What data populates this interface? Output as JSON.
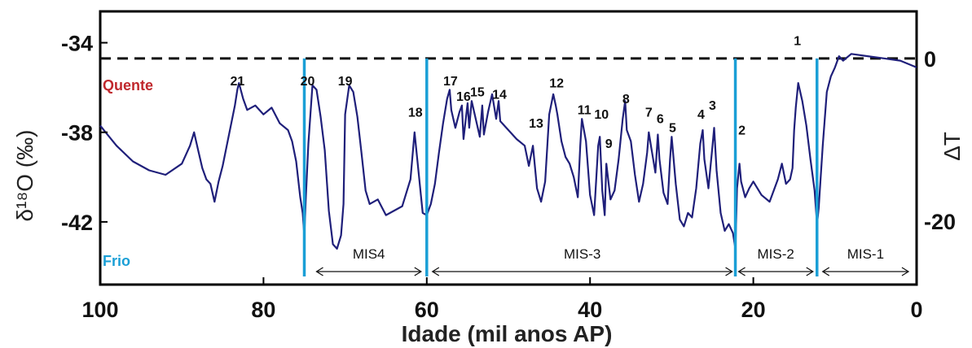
{
  "chart_data": {
    "type": "line",
    "xlabel": "Idade (mil anos AP)",
    "ylabel_left": "δ¹⁸O (‰)",
    "ylabel_right": "ΔT",
    "x_ticks": [
      "100",
      "80",
      "60",
      "40",
      "20",
      "0"
    ],
    "y_ticks_left": [
      "-34",
      "-38",
      "-42"
    ],
    "y_ticks_right": [
      "0",
      "-20"
    ],
    "xlim": [
      100,
      0
    ],
    "ylim": [
      -44.8,
      -32.6
    ],
    "series": [
      {
        "color": "#1f1f7a",
        "x": [
          100,
          98,
          96,
          94,
          92,
          90,
          89,
          88.5,
          88,
          87.5,
          87,
          86.5,
          86,
          85.5,
          85,
          84.5,
          84,
          83.5,
          83.2,
          83,
          82.5,
          82,
          81,
          80,
          79,
          78,
          77,
          76.5,
          76,
          75.5,
          75.2,
          75,
          74.8,
          74.5,
          74,
          73.5,
          73,
          72.5,
          72,
          71.5,
          71,
          70.5,
          70.2,
          70,
          69.5,
          69,
          68.5,
          68,
          67.5,
          67,
          66,
          65,
          64,
          63,
          62,
          61.5,
          61,
          60.5,
          60,
          59.5,
          59,
          58.5,
          58,
          57.5,
          57.2,
          57,
          56.5,
          56,
          55.7,
          55.5,
          55,
          54.8,
          54.5,
          54,
          53.5,
          53.2,
          53,
          52.5,
          52,
          51.5,
          51.2,
          51,
          50,
          49,
          48,
          47.5,
          47,
          46.5,
          46,
          45.5,
          45,
          44.5,
          44.2,
          44,
          43.5,
          43,
          42.5,
          42,
          41.5,
          41.2,
          41,
          40.5,
          40,
          39.5,
          39,
          38.8,
          38.5,
          38.2,
          38,
          37.5,
          37,
          36.5,
          36,
          35.7,
          35.5,
          35,
          34.5,
          34,
          33.5,
          33,
          32.8,
          32.5,
          32,
          31.7,
          31.5,
          31,
          30.5,
          30.2,
          30,
          29.5,
          29,
          28.5,
          28,
          27.5,
          27,
          26.5,
          26.2,
          26,
          25.5,
          25,
          24.8,
          24.5,
          24,
          23.5,
          23,
          22.5,
          22.2,
          22,
          21.7,
          21.5,
          21,
          20.5,
          20,
          19,
          18,
          17,
          16.5,
          16,
          15.5,
          15.2,
          15,
          14.8,
          14.5,
          14,
          13.5,
          13,
          12.5,
          12.2,
          12,
          11.5,
          11,
          10.5,
          10,
          9.5,
          9,
          8,
          6,
          4,
          2,
          0
        ],
        "values": [
          -37.7,
          -38.6,
          -39.3,
          -39.7,
          -39.9,
          -39.4,
          -38.6,
          -38.0,
          -38.8,
          -39.6,
          -40.1,
          -40.3,
          -41.1,
          -40.2,
          -39.5,
          -38.6,
          -37.7,
          -36.8,
          -36.1,
          -35.8,
          -36.5,
          -37.0,
          -36.8,
          -37.2,
          -36.9,
          -37.6,
          -37.9,
          -38.4,
          -39.3,
          -40.9,
          -41.6,
          -42.6,
          -40.8,
          -38.5,
          -35.9,
          -36.1,
          -37.3,
          -38.8,
          -41.5,
          -43.0,
          -43.2,
          -42.6,
          -41.2,
          -37.2,
          -35.9,
          -36.2,
          -37.3,
          -38.9,
          -40.6,
          -41.2,
          -41.0,
          -41.7,
          -41.5,
          -41.3,
          -40.1,
          -38.0,
          -39.8,
          -41.6,
          -41.7,
          -41.2,
          -40.3,
          -38.9,
          -37.6,
          -36.5,
          -36.1,
          -37.0,
          -37.8,
          -37.1,
          -36.8,
          -38.3,
          -36.7,
          -37.8,
          -36.6,
          -37.4,
          -38.2,
          -36.8,
          -38.1,
          -37.1,
          -36.3,
          -37.4,
          -36.6,
          -37.5,
          -37.9,
          -38.3,
          -38.6,
          -39.5,
          -38.6,
          -40.5,
          -41.1,
          -40.2,
          -37.2,
          -36.3,
          -36.8,
          -37.2,
          -38.4,
          -39.1,
          -39.4,
          -40.0,
          -40.9,
          -38.6,
          -37.4,
          -38.4,
          -40.8,
          -41.7,
          -38.6,
          -38.2,
          -40.6,
          -41.7,
          -39.4,
          -41.0,
          -40.6,
          -39.2,
          -37.4,
          -36.6,
          -37.9,
          -38.4,
          -39.9,
          -41.1,
          -40.3,
          -38.9,
          -38.0,
          -38.7,
          -39.8,
          -38.1,
          -39.2,
          -40.7,
          -41.2,
          -39.2,
          -38.2,
          -40.3,
          -41.9,
          -42.2,
          -41.6,
          -41.8,
          -40.5,
          -38.5,
          -37.9,
          -39.2,
          -40.5,
          -38.6,
          -37.8,
          -39.7,
          -41.6,
          -42.4,
          -42.1,
          -42.5,
          -43.2,
          -40.5,
          -39.4,
          -40.2,
          -40.9,
          -40.5,
          -40.2,
          -40.8,
          -41.1,
          -40.1,
          -39.4,
          -40.3,
          -40.1,
          -39.6,
          -37.9,
          -36.9,
          -35.8,
          -36.6,
          -37.7,
          -39.2,
          -40.6,
          -42.1,
          -41.4,
          -38.6,
          -36.2,
          -35.5,
          -35.1,
          -34.6,
          -34.8,
          -34.5,
          -34.6,
          -34.7,
          -34.8,
          -35.1
        ]
      }
    ],
    "events": [
      {
        "label": "21",
        "x": 83.2,
        "y": -35.9
      },
      {
        "label": "20",
        "x": 74.6,
        "y": -35.9
      },
      {
        "label": "19",
        "x": 70.0,
        "y": -35.9
      },
      {
        "label": "18",
        "x": 61.4,
        "y": -37.3
      },
      {
        "label": "17",
        "x": 57.1,
        "y": -35.9
      },
      {
        "label": "16",
        "x": 55.5,
        "y": -36.6
      },
      {
        "label": "15",
        "x": 53.8,
        "y": -36.4
      },
      {
        "label": "14",
        "x": 51.1,
        "y": -36.5
      },
      {
        "label": "13",
        "x": 46.6,
        "y": -37.8
      },
      {
        "label": "12",
        "x": 44.1,
        "y": -36.0
      },
      {
        "label": "11",
        "x": 40.7,
        "y": -37.2
      },
      {
        "label": "10",
        "x": 38.6,
        "y": -37.4
      },
      {
        "label": "9",
        "x": 37.7,
        "y": -38.7
      },
      {
        "label": "8",
        "x": 35.6,
        "y": -36.7
      },
      {
        "label": "7",
        "x": 32.8,
        "y": -37.3
      },
      {
        "label": "6",
        "x": 31.4,
        "y": -37.6
      },
      {
        "label": "5",
        "x": 29.9,
        "y": -38.0
      },
      {
        "label": "4",
        "x": 26.4,
        "y": -37.4
      },
      {
        "label": "3",
        "x": 25.0,
        "y": -37.0
      },
      {
        "label": "2",
        "x": 21.4,
        "y": -38.1
      },
      {
        "label": "1",
        "x": 14.6,
        "y": -34.1
      }
    ],
    "stadials_x": [
      75,
      60,
      22.2,
      12.2
    ],
    "stadial_color": "#1a9fd6",
    "reference_line_y": -34.7,
    "mis_periods": [
      {
        "label": "MIS4",
        "x_start": 73.5,
        "x_end": 60.7
      },
      {
        "label": "MIS-3",
        "x_start": 59.3,
        "x_end": 22.6
      },
      {
        "label": "MIS-2",
        "x_start": 21.8,
        "x_end": 12.7
      },
      {
        "label": "MIS-1",
        "x_start": 11.5,
        "x_end": 1.0
      }
    ],
    "annotations": {
      "warm": {
        "text": "Quente",
        "color": "#c0282d"
      },
      "cold": {
        "text": "Frio",
        "color": "#1a9fd6"
      }
    }
  }
}
